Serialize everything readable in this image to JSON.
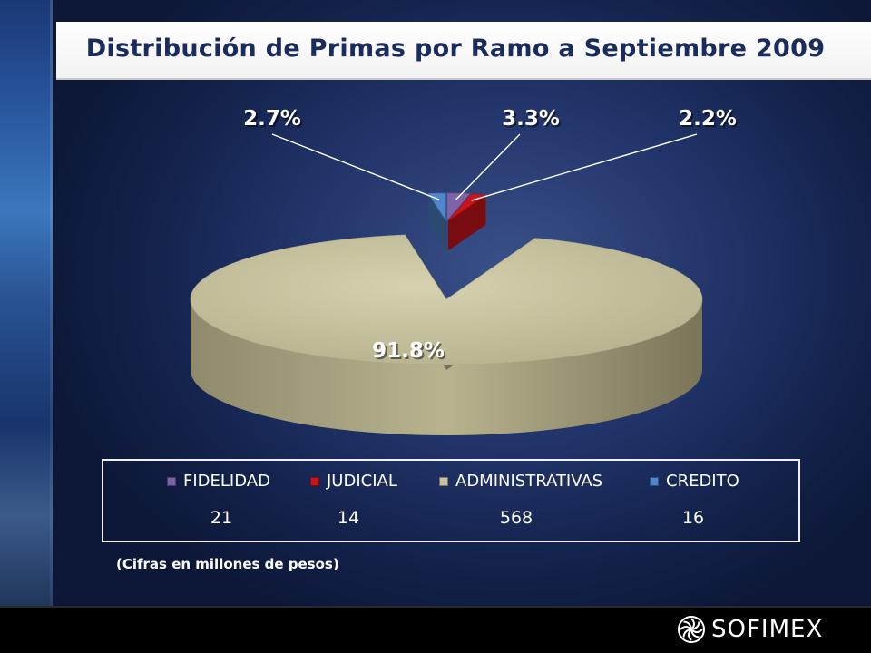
{
  "title": "Distribución de Primas por Ramo a Septiembre 2009",
  "note": "(Cifras en millones de pesos)",
  "logo": {
    "text": "SOFIMEX",
    "icon": "sofimex-logo-icon"
  },
  "chart_data": {
    "type": "pie",
    "title": "Distribución de Primas por Ramo a Septiembre 2009",
    "unit_note": "(Cifras en millones de pesos)",
    "legend_position": "bottom",
    "slices": [
      {
        "name": "FIDELIDAD",
        "value": 21,
        "percent_label": "3.3%",
        "color": "#7d64a8"
      },
      {
        "name": "JUDICIAL",
        "value": 14,
        "percent_label": "2.2%",
        "color": "#c8141a"
      },
      {
        "name": "ADMINISTRATIVAS",
        "value": 568,
        "percent_label": "91.8%",
        "color": "#c9c4a0"
      },
      {
        "name": "CREDITO",
        "value": 16,
        "percent_label": "2.7%",
        "color": "#4f86cc"
      }
    ]
  }
}
